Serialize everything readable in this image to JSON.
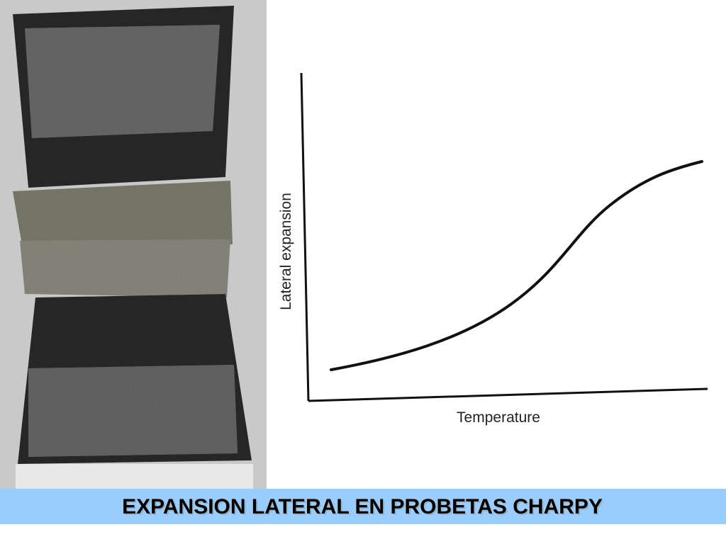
{
  "slide": {
    "title": "EXPANSION LATERAL EN PROBETAS CHARPY",
    "figure": {
      "x_label": "Temperature",
      "y_label": "Lateral expansion"
    }
  }
}
